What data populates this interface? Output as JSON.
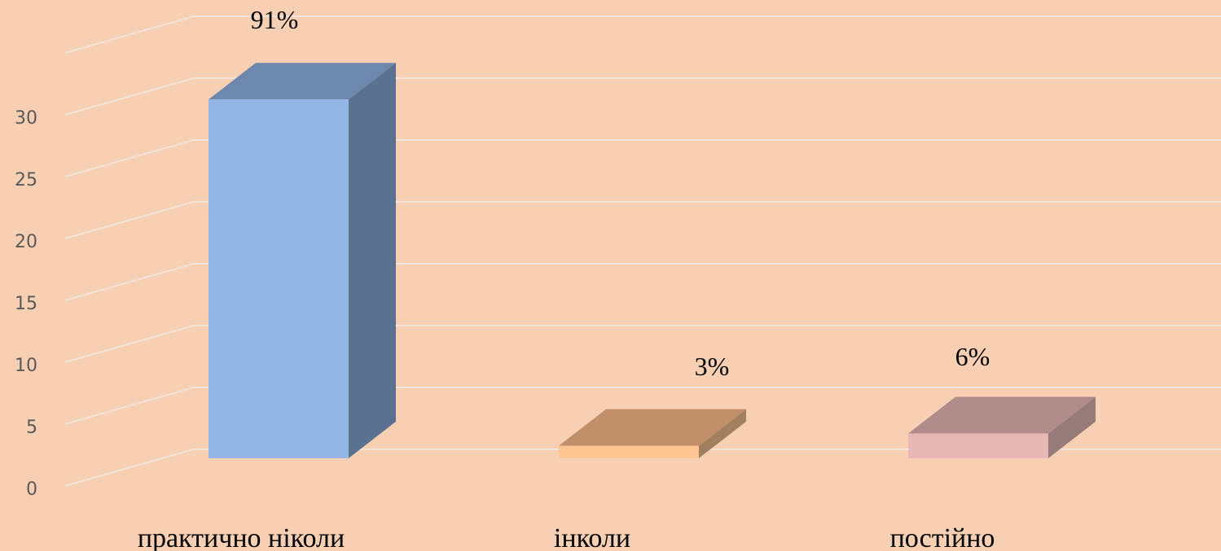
{
  "colors": {
    "background": "#f7cfb2",
    "grid": "#f0e4da"
  },
  "chart_data": {
    "type": "bar",
    "three_d": true,
    "categories": [
      "практично ніколи",
      "інколи",
      "постійно"
    ],
    "values": [
      29,
      1,
      2
    ],
    "data_labels": [
      "91%",
      "3%",
      "6%"
    ],
    "ylim": [
      0,
      30
    ],
    "yticks": [
      0,
      5,
      10,
      15,
      20,
      25,
      30
    ],
    "ytick_labels": [
      "0",
      "5",
      "10",
      "15",
      "20",
      "25",
      "30"
    ],
    "grid": true,
    "legend": false,
    "bar_colors": [
      {
        "front": "#93b5e4",
        "side": "#5a7190",
        "top": "#6c89ad"
      },
      {
        "front": "#fcc591",
        "side": "#a2805f",
        "top": "#c1906a"
      },
      {
        "front": "#e8b8b7",
        "side": "#977a7a",
        "top": "#b08c8a"
      }
    ]
  }
}
